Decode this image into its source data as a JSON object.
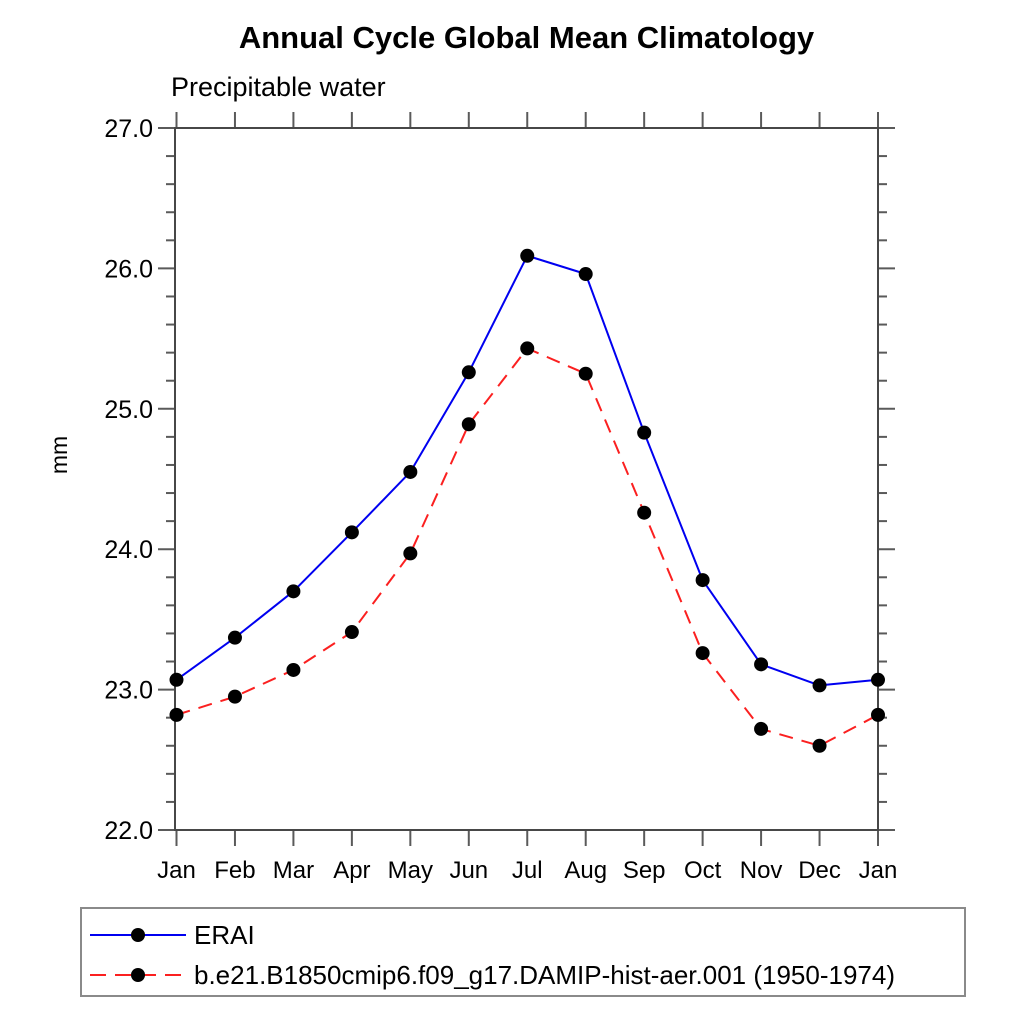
{
  "chart_data": {
    "type": "line",
    "title": "Annual Cycle Global Mean Climatology",
    "subtitle": "Precipitable water",
    "xlabel": "",
    "ylabel": "mm",
    "ylim": [
      22.0,
      27.0
    ],
    "ytick_major_step": 1.0,
    "ytick_minor_step": 0.2,
    "ytick_labels": [
      "22.0",
      "23.0",
      "24.0",
      "25.0",
      "26.0",
      "27.0"
    ],
    "grid": false,
    "legend_position": "bottom",
    "categories": [
      "Jan",
      "Feb",
      "Mar",
      "Apr",
      "May",
      "Jun",
      "Jul",
      "Aug",
      "Sep",
      "Oct",
      "Nov",
      "Dec",
      "Jan"
    ],
    "series": [
      {
        "name": "ERAI",
        "color": "#0000f0",
        "line_style": "solid",
        "marker": "filled-circle",
        "marker_color": "#000000",
        "values": [
          23.07,
          23.37,
          23.7,
          24.12,
          24.55,
          25.26,
          26.09,
          25.96,
          24.83,
          23.78,
          23.18,
          23.03,
          23.07
        ]
      },
      {
        "name": "b.e21.B1850cmip6.f09_g17.DAMIP-hist-aer.001 (1950-1974)",
        "color": "#fb2020",
        "line_style": "dashed",
        "marker": "filled-circle",
        "marker_color": "#000000",
        "values": [
          22.82,
          22.95,
          23.14,
          23.41,
          23.97,
          24.89,
          25.43,
          25.25,
          24.26,
          23.26,
          22.72,
          22.6,
          22.82
        ]
      }
    ]
  },
  "style": {
    "frame_color": "#474747",
    "tick_color": "#5a5a5a",
    "text_color": "#000000"
  }
}
